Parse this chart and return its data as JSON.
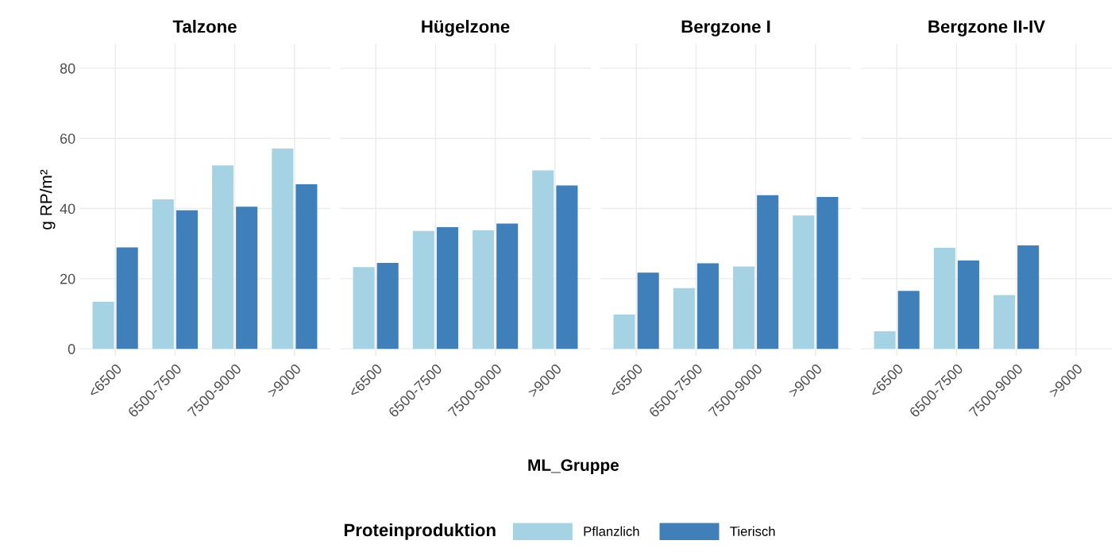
{
  "chart_data": [
    {
      "type": "bar",
      "title": "Talzone",
      "categories": [
        "<6500",
        "6500-7500",
        "7500-9000",
        ">9000"
      ],
      "ylabel": "g RP/m²",
      "legend_title": "Proteinproduktion",
      "legend": "bottom",
      "grid": true,
      "ylim": [
        -2,
        87
      ],
      "yticks": [
        0,
        20,
        40,
        60,
        80
      ],
      "series": [
        {
          "name": "Pflanzlich",
          "color": "#a6d3e3",
          "values": [
            13.4,
            42.6,
            52.3,
            57.1
          ]
        },
        {
          "name": "Tierisch",
          "color": "#3f80ba",
          "values": [
            28.9,
            39.5,
            40.5,
            46.9
          ]
        }
      ]
    },
    {
      "type": "bar",
      "title": "Hügelzone",
      "xlabel": "ML_Gruppe",
      "categories": [
        "<6500",
        "6500-7500",
        "7500-9000",
        ">9000"
      ],
      "grid": true,
      "ylim": [
        -2,
        87
      ],
      "yticks": [
        0,
        20,
        40,
        60,
        80
      ],
      "tick_labels": "x",
      "series": [
        {
          "color": "#a6d3e3",
          "values": [
            23.3,
            33.6,
            33.8,
            50.9
          ]
        },
        {
          "color": "#3f80ba",
          "values": [
            24.5,
            34.7,
            35.7,
            46.6
          ]
        }
      ]
    },
    {
      "type": "bar",
      "title": "Bergzone I",
      "categories": [
        "<6500",
        "6500-7500",
        "7500-9000",
        ">9000"
      ],
      "grid": true,
      "ylim": [
        -2,
        87
      ],
      "yticks": [
        0,
        20,
        40,
        60,
        80
      ],
      "tick_labels": "x",
      "series": [
        {
          "color": "#a6d3e3",
          "values": [
            9.8,
            17.3,
            23.5,
            38.0
          ]
        },
        {
          "color": "#3f80ba",
          "values": [
            21.7,
            24.4,
            43.8,
            43.3
          ]
        }
      ]
    },
    {
      "type": "bar",
      "title": "Bergzone II-IV",
      "categories": [
        "<6500",
        "6500-7500",
        "7500-9000",
        ">9000"
      ],
      "grid": true,
      "ylim": [
        -2,
        87
      ],
      "yticks": [
        0,
        20,
        40,
        60,
        80
      ],
      "tick_labels": "x",
      "series": [
        {
          "color": "#a6d3e3",
          "values": [
            5.0,
            28.8,
            15.3,
            null
          ]
        },
        {
          "color": "#3f80ba",
          "values": [
            16.5,
            25.2,
            29.5,
            null
          ]
        }
      ]
    }
  ]
}
